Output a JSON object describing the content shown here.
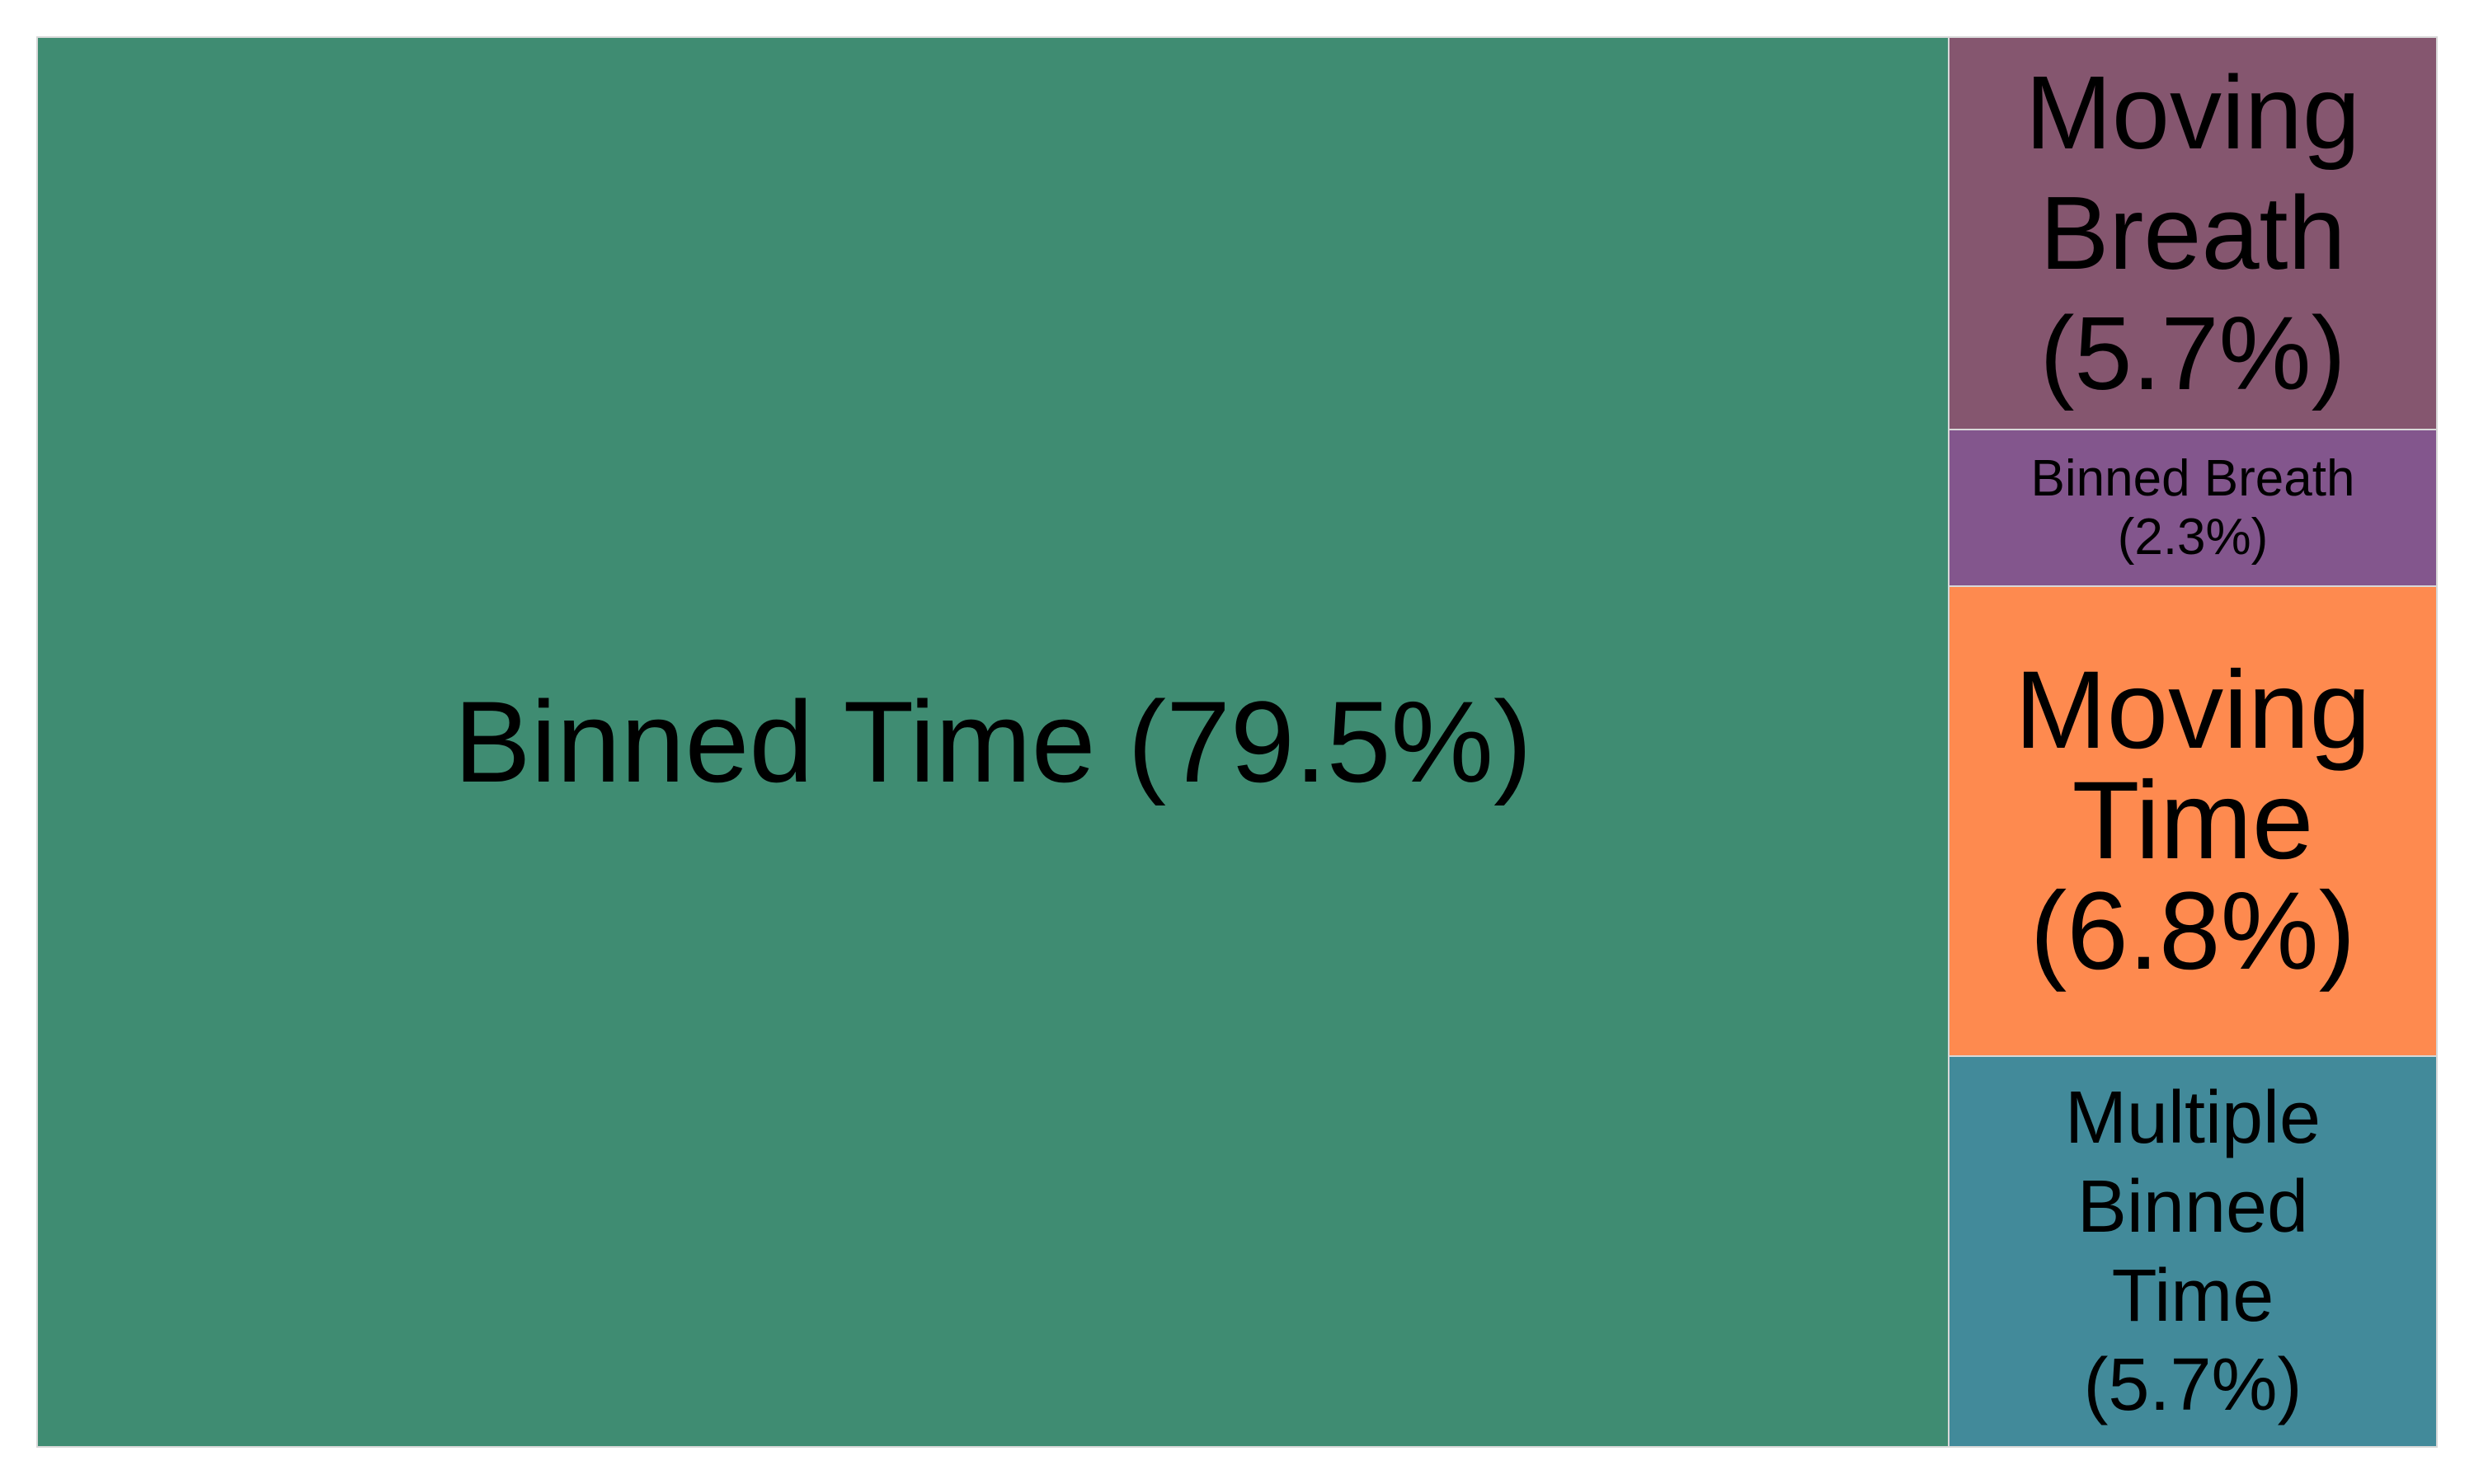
{
  "chart_data": {
    "type": "treemap",
    "title": "",
    "items": [
      {
        "name": "Binned Time",
        "value": 79.5,
        "label": "Binned Time (79.5%)",
        "color": "#3f8c72"
      },
      {
        "name": "Moving Breath",
        "value": 5.7,
        "label": "Moving\nBreath\n(5.7%)",
        "color": "#85566f"
      },
      {
        "name": "Binned Breath",
        "value": 2.3,
        "label": "Binned Breath\n(2.3%)",
        "color": "#83568d"
      },
      {
        "name": "Moving Time",
        "value": 6.8,
        "label": "Moving\nTime\n(6.8%)",
        "color": "#fe8a4f"
      },
      {
        "name": "Multiple Binned Time",
        "value": 5.7,
        "label": "Multiple\nBinned\nTime\n(5.7%)",
        "color": "#428a9a"
      }
    ]
  }
}
